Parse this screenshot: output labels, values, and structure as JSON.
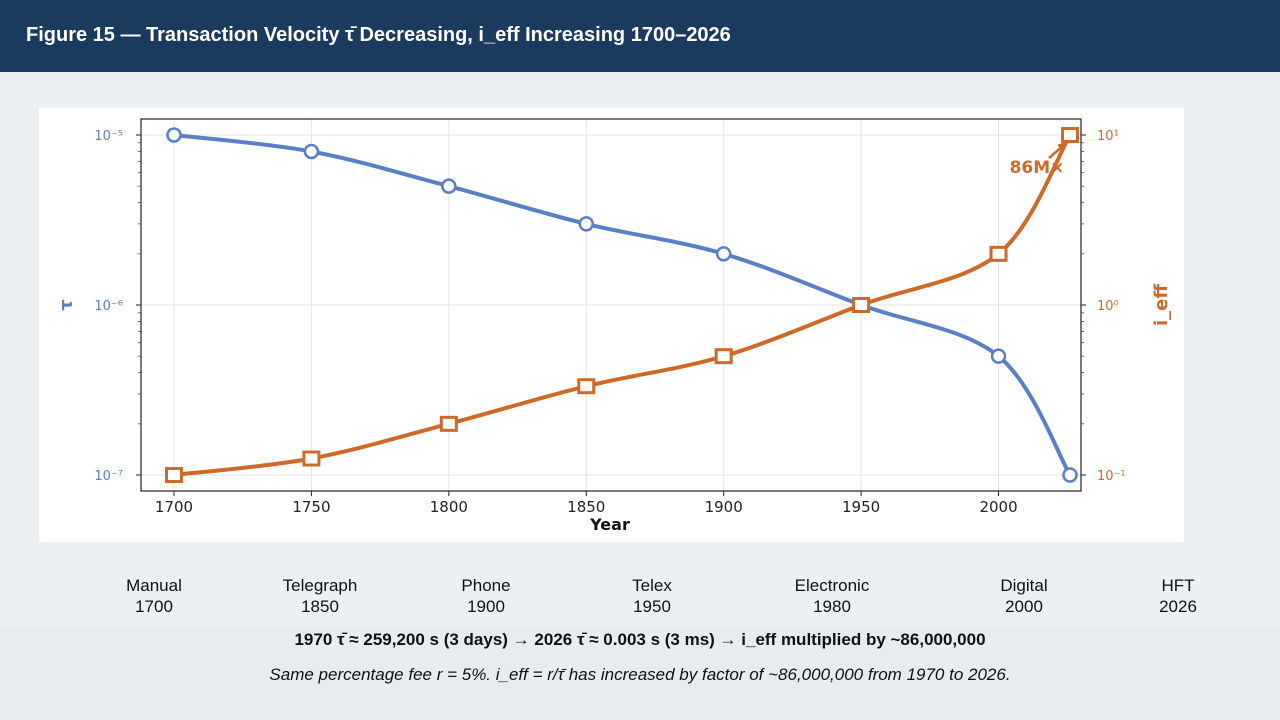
{
  "header": {
    "title": "Figure 15 — Transaction Velocity τ̄ Decreasing, i_eff Increasing 1700–2026"
  },
  "chart_data": {
    "type": "line",
    "x": [
      1700,
      1750,
      1800,
      1850,
      1900,
      1950,
      2000,
      2026
    ],
    "xlabel": "Year",
    "xlim": [
      1688,
      2030
    ],
    "xticks": [
      "1700",
      "1750",
      "1800",
      "1850",
      "1900",
      "1950",
      "2000"
    ],
    "series": [
      {
        "name": "τ",
        "axis": "left",
        "color": "#5b7fc7",
        "marker": "circle",
        "values": [
          1e-05,
          8e-06,
          5e-06,
          3e-06,
          2e-06,
          1e-06,
          5e-07,
          1e-07
        ]
      },
      {
        "name": "i_eff",
        "axis": "right",
        "color": "#cd6a2a",
        "marker": "square",
        "values": [
          0.1,
          0.125,
          0.2,
          0.333,
          0.5,
          1,
          2,
          10
        ]
      }
    ],
    "y_left": {
      "label": "τ",
      "scale": "log",
      "range": [
        1e-07,
        1e-05
      ],
      "ticks": [
        "10⁻⁵",
        "10⁻⁶",
        "10⁻⁷"
      ]
    },
    "y_right": {
      "label": "i_eff",
      "scale": "log",
      "range": [
        0.1,
        10
      ],
      "ticks": [
        "10¹",
        "10⁰",
        "10⁻¹"
      ]
    },
    "annotation": {
      "text": "86M×",
      "x": 2026,
      "y": 10
    },
    "grid": true
  },
  "eras": [
    {
      "name": "Manual",
      "year": "1700"
    },
    {
      "name": "Telegraph",
      "year": "1850"
    },
    {
      "name": "Phone",
      "year": "1900"
    },
    {
      "name": "Telex",
      "year": "1950"
    },
    {
      "name": "Electronic",
      "year": "1980"
    },
    {
      "name": "Digital",
      "year": "2000"
    },
    {
      "name": "HFT",
      "year": "2026"
    }
  ],
  "summary": "1970 τ̄ ≈ 259,200 s (3 days) → 2026 τ̄ ≈ 0.003 s (3 ms) → i_eff multiplied by ~86,000,000",
  "note": "Same percentage fee r = 5%. i_eff = r/τ̄ has increased by factor of ~86,000,000 from 1970 to 2026."
}
